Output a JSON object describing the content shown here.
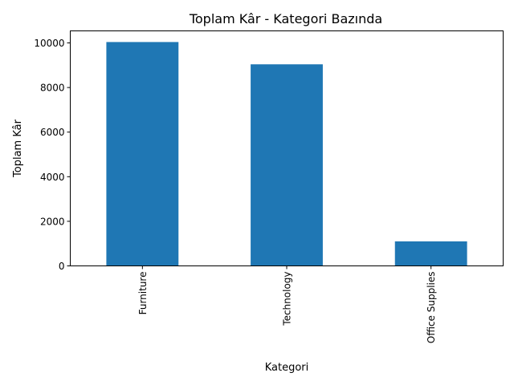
{
  "chart_data": {
    "type": "bar",
    "title": "Toplam Kâr - Kategori Bazında",
    "xlabel": "Kategori",
    "ylabel": "Toplam Kâr",
    "categories": [
      "Furniture",
      "Technology",
      "Office Supplies"
    ],
    "values": [
      10040,
      9040,
      1100
    ],
    "ylim": [
      0,
      10540
    ],
    "yticks": [
      0,
      2000,
      4000,
      6000,
      8000,
      10000
    ],
    "grid": false,
    "legend": "none",
    "bar_color": "#1f77b4"
  }
}
